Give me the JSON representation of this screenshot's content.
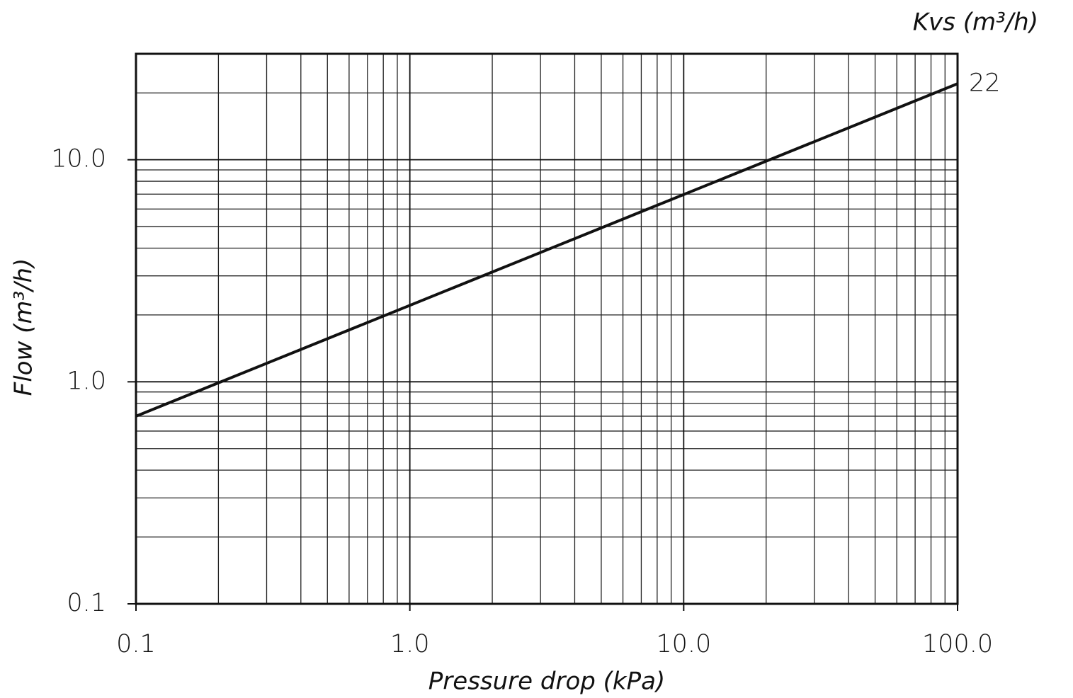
{
  "chart_data": {
    "type": "line",
    "x_label": "Pressure drop (kPa)",
    "y_label": "Flow (m³/h)",
    "legend_title": "Kvs (m³/h)",
    "x": [
      0.1,
      100
    ],
    "series": [
      {
        "name": "22",
        "color": "#111111",
        "values": [
          0.7,
          22
        ]
      }
    ],
    "xlim": [
      0.1,
      100
    ],
    "ylim": [
      0.1,
      30
    ],
    "xticks": [
      0.1,
      {
        "value": 1,
        "label": "1.0"
      },
      {
        "value": 10,
        "label": "10.0"
      },
      {
        "value": 100,
        "label": "100.0"
      }
    ],
    "yticks": [
      0.1,
      {
        "value": 1,
        "label": "1.0"
      },
      {
        "value": 10,
        "label": "10.0"
      }
    ],
    "xscale": "log",
    "yscale": "log",
    "grid": true,
    "minor_grid": true
  }
}
